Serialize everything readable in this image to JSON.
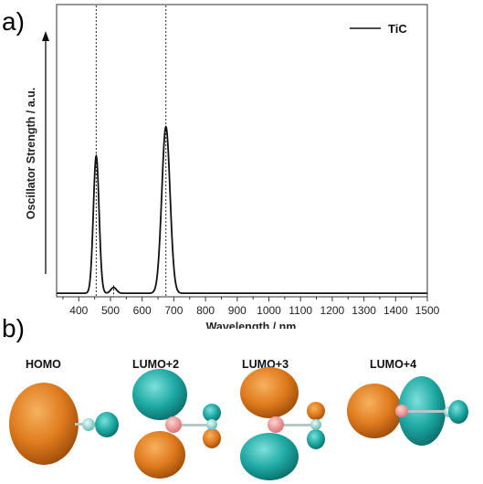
{
  "panel_labels": {
    "a": "a)",
    "b": "b)"
  },
  "chart_data": {
    "type": "line",
    "title": "",
    "xlabel": "Wavelength / nm",
    "ylabel": "Oscillator Strength / a.u.",
    "xlim": [
      330,
      1500
    ],
    "ylim": [
      0,
      1.0
    ],
    "x_ticks": [
      400,
      500,
      600,
      700,
      800,
      900,
      1000,
      1100,
      1200,
      1300,
      1400,
      1500
    ],
    "x_tick_labels": [
      "400",
      "500",
      "600",
      "700",
      "800",
      "900",
      "1000",
      "1100",
      "1200",
      "1300",
      "1400",
      "1500"
    ],
    "grid": false,
    "legend": {
      "position": "top-right",
      "entries": [
        "TiC"
      ]
    },
    "series": [
      {
        "name": "TiC",
        "color": "#111111",
        "peaks": [
          {
            "center": 455,
            "height": 0.47,
            "width": 9
          },
          {
            "center": 510,
            "height": 0.02,
            "width": 9
          },
          {
            "center": 675,
            "height": 0.57,
            "width": 13
          }
        ],
        "x": [
          330,
          420,
          440,
          450,
          455,
          460,
          470,
          490,
          510,
          530,
          600,
          640,
          660,
          670,
          675,
          680,
          690,
          710,
          750,
          1000,
          1500
        ],
        "y": [
          0,
          0.002,
          0.1,
          0.4,
          0.47,
          0.4,
          0.1,
          0.004,
          0.02,
          0.003,
          0,
          0.02,
          0.27,
          0.52,
          0.57,
          0.52,
          0.27,
          0.02,
          0,
          0,
          0
        ]
      }
    ],
    "reference_lines_x": [
      455,
      510,
      675
    ]
  },
  "orbitals": [
    {
      "label": "HOMO"
    },
    {
      "label": "LUMO+2"
    },
    {
      "label": "LUMO+3"
    },
    {
      "label": "LUMO+4"
    }
  ],
  "colors": {
    "lobe_orange": "#e07b1f",
    "lobe_teal": "#1ea9a4",
    "atom_pink": "#e89a9a",
    "atom_teal": "#7fcfc8"
  }
}
